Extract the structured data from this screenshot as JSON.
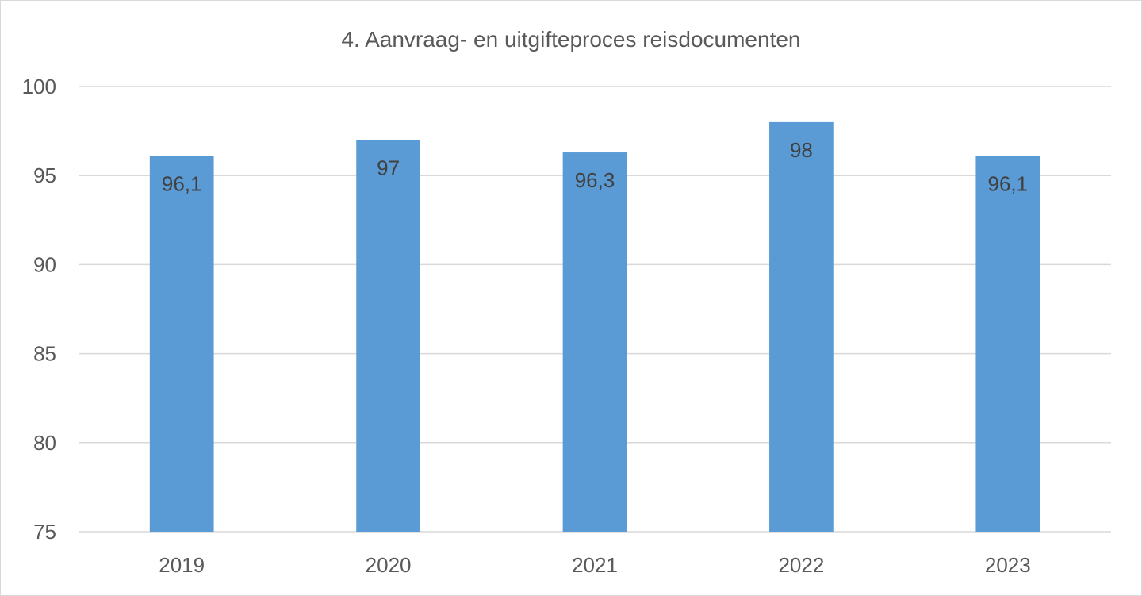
{
  "chart_data": {
    "type": "bar",
    "title": "4. Aanvraag- en uitgifteproces reisdocumenten",
    "xlabel": "",
    "ylabel": "",
    "categories": [
      "2019",
      "2020",
      "2021",
      "2022",
      "2023"
    ],
    "values": [
      96.1,
      97,
      96.3,
      98,
      96.1
    ],
    "data_labels": [
      "96,1",
      "97",
      "96,3",
      "98",
      "96,1"
    ],
    "ylim": [
      75,
      100
    ],
    "yticks": [
      75,
      80,
      85,
      90,
      95,
      100
    ],
    "ytick_labels": [
      "75",
      "80",
      "85",
      "90",
      "95",
      "100"
    ],
    "grid": true,
    "legend": "none",
    "colors": {
      "bar": "#5b9bd5",
      "gridline": "#d9d9d9",
      "text": "#595959",
      "data_label": "#404040"
    }
  }
}
